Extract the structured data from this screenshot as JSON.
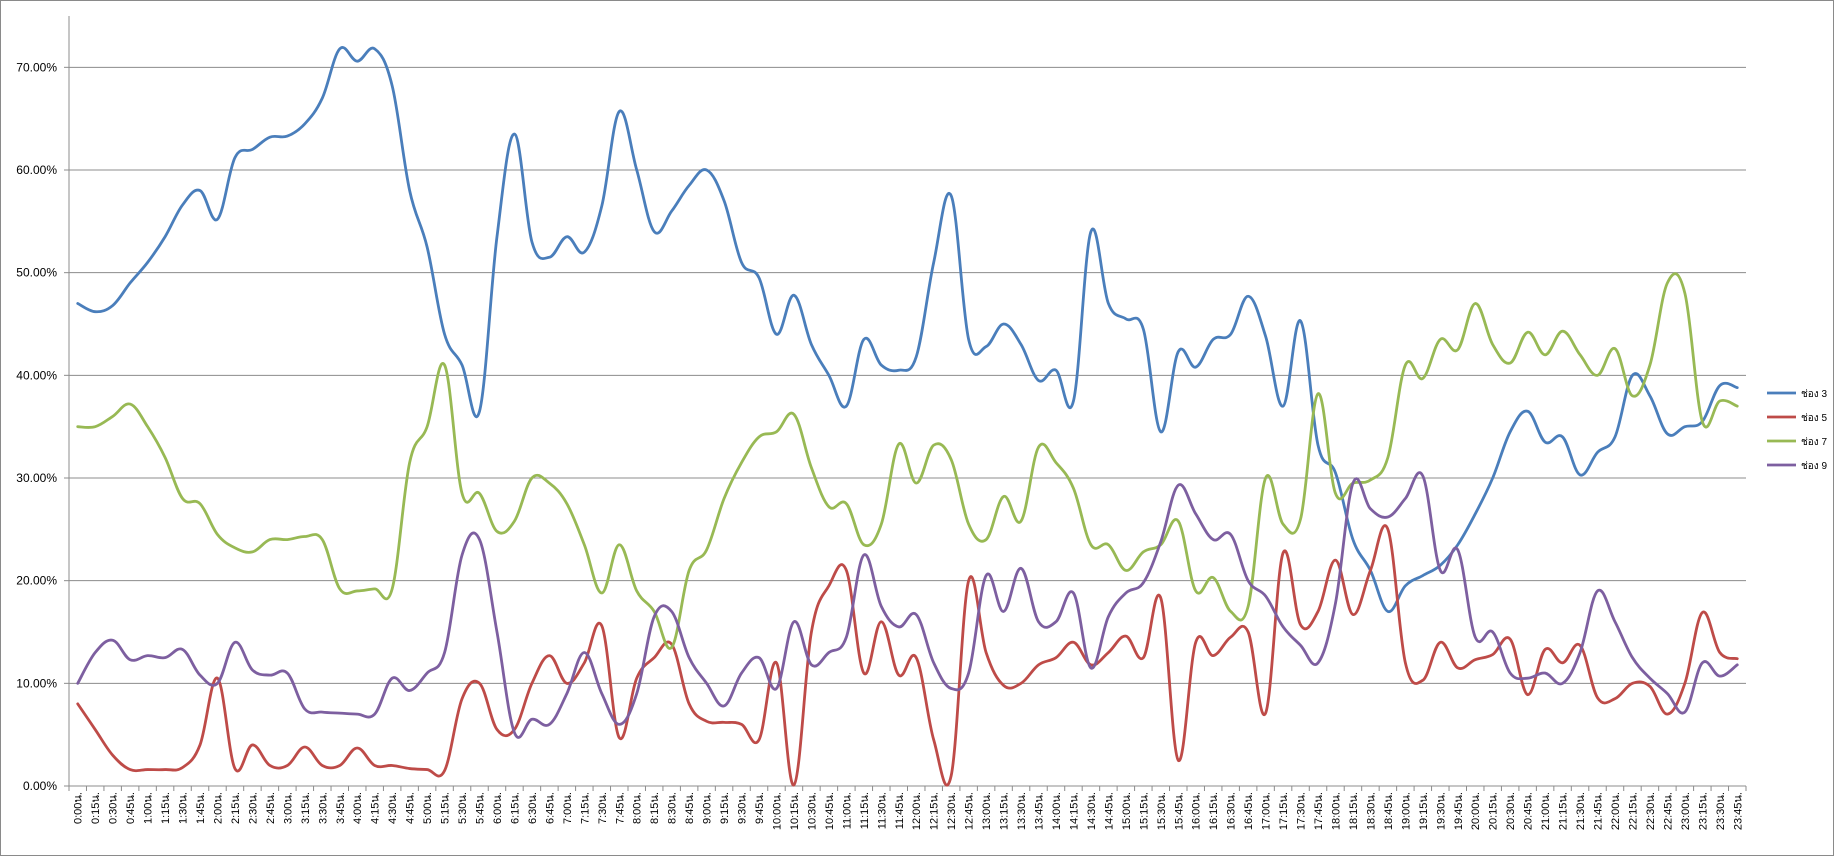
{
  "chart_data": {
    "type": "line",
    "title": "",
    "xlabel": "",
    "ylabel": "",
    "ylim": [
      0,
      0.75
    ],
    "yticks": [
      "0.00%",
      "10.00%",
      "20.00%",
      "30.00%",
      "40.00%",
      "50.00%",
      "60.00%",
      "70.00%"
    ],
    "grid": true,
    "legend_position": "right",
    "categories": [
      "0:00น.",
      "0:15น.",
      "0:30น.",
      "0:45น.",
      "1:00น.",
      "1:15น.",
      "1:30น.",
      "1:45น.",
      "2:00น.",
      "2:15น.",
      "2:30น.",
      "2:45น.",
      "3:00น.",
      "3:15น.",
      "3:30น.",
      "3:45น.",
      "4:00น.",
      "4:15น.",
      "4:30น.",
      "4:45น.",
      "5:00น.",
      "5:15น.",
      "5:30น.",
      "5:45น.",
      "6:00น.",
      "6:15น.",
      "6:30น.",
      "6:45น.",
      "7:00น.",
      "7:15น.",
      "7:30น.",
      "7:45น.",
      "8:00น.",
      "8:15น.",
      "8:30น.",
      "8:45น.",
      "9:00น.",
      "9:15น.",
      "9:30น.",
      "9:45น.",
      "10:00น.",
      "10:15น.",
      "10:30น.",
      "10:45น.",
      "11:00น.",
      "11:15น.",
      "11:30น.",
      "11:45น.",
      "12:00น.",
      "12:15น.",
      "12:30น.",
      "12:45น.",
      "13:00น.",
      "13:15น.",
      "13:30น.",
      "13:45น.",
      "14:00น.",
      "14:15น.",
      "14:30น.",
      "14:45น.",
      "15:00น.",
      "15:15น.",
      "15:30น.",
      "15:45น.",
      "16:00น.",
      "16:15น.",
      "16:30น.",
      "16:45น.",
      "17:00น.",
      "17:15น.",
      "17:30น.",
      "17:45น.",
      "18:00น.",
      "18:15น.",
      "18:30น.",
      "18:45น.",
      "19:00น.",
      "19:15น.",
      "19:30น.",
      "19:45น.",
      "20:00น.",
      "20:15น.",
      "20:30น.",
      "20:45น.",
      "21:00น.",
      "21:15น.",
      "21:30น.",
      "21:45น.",
      "22:00น.",
      "22:15น.",
      "22:30น.",
      "22:45น.",
      "23:00น.",
      "23:15น.",
      "23:30น.",
      "23:45น."
    ],
    "series": [
      {
        "name": "ช่อง 3",
        "color": "#4a7ebb",
        "values": [
          0.47,
          0.462,
          0.468,
          0.49,
          0.51,
          0.535,
          0.566,
          0.58,
          0.552,
          0.612,
          0.62,
          0.632,
          0.633,
          0.645,
          0.67,
          0.718,
          0.706,
          0.718,
          0.682,
          0.58,
          0.525,
          0.44,
          0.41,
          0.365,
          0.535,
          0.635,
          0.53,
          0.515,
          0.535,
          0.52,
          0.565,
          0.657,
          0.6,
          0.54,
          0.56,
          0.585,
          0.6,
          0.57,
          0.51,
          0.495,
          0.44,
          0.478,
          0.43,
          0.4,
          0.37,
          0.435,
          0.41,
          0.405,
          0.418,
          0.51,
          0.575,
          0.435,
          0.428,
          0.45,
          0.43,
          0.395,
          0.405,
          0.375,
          0.54,
          0.47,
          0.455,
          0.445,
          0.345,
          0.423,
          0.408,
          0.435,
          0.44,
          0.477,
          0.438,
          0.37,
          0.453,
          0.332,
          0.305,
          0.24,
          0.21,
          0.17,
          0.195,
          0.205,
          0.215,
          0.235,
          0.265,
          0.3,
          0.345,
          0.365,
          0.335,
          0.34,
          0.303,
          0.325,
          0.34,
          0.4,
          0.38,
          0.343,
          0.35,
          0.355,
          0.39,
          0.388
        ]
      },
      {
        "name": "ช่อง 5",
        "color": "#be4b48",
        "values": [
          0.08,
          0.055,
          0.03,
          0.016,
          0.016,
          0.016,
          0.018,
          0.04,
          0.105,
          0.017,
          0.04,
          0.02,
          0.02,
          0.038,
          0.02,
          0.02,
          0.037,
          0.02,
          0.02,
          0.017,
          0.016,
          0.015,
          0.085,
          0.1,
          0.055,
          0.055,
          0.1,
          0.127,
          0.1,
          0.12,
          0.156,
          0.047,
          0.105,
          0.125,
          0.138,
          0.08,
          0.063,
          0.062,
          0.06,
          0.045,
          0.12,
          0.001,
          0.15,
          0.195,
          0.21,
          0.11,
          0.16,
          0.108,
          0.125,
          0.045,
          0.01,
          0.2,
          0.13,
          0.098,
          0.1,
          0.118,
          0.125,
          0.14,
          0.118,
          0.13,
          0.146,
          0.125,
          0.183,
          0.025,
          0.14,
          0.127,
          0.145,
          0.15,
          0.071,
          0.227,
          0.157,
          0.17,
          0.22,
          0.167,
          0.21,
          0.25,
          0.12,
          0.103,
          0.14,
          0.115,
          0.123,
          0.128,
          0.143,
          0.089,
          0.133,
          0.12,
          0.137,
          0.086,
          0.085,
          0.1,
          0.097,
          0.07,
          0.1,
          0.169,
          0.13,
          0.124
        ]
      },
      {
        "name": "ช่อง 7",
        "color": "#98b954",
        "values": [
          0.35,
          0.35,
          0.36,
          0.372,
          0.35,
          0.32,
          0.28,
          0.275,
          0.245,
          0.232,
          0.228,
          0.24,
          0.24,
          0.243,
          0.24,
          0.192,
          0.19,
          0.192,
          0.192,
          0.315,
          0.35,
          0.41,
          0.285,
          0.285,
          0.248,
          0.258,
          0.3,
          0.295,
          0.275,
          0.235,
          0.188,
          0.235,
          0.19,
          0.17,
          0.135,
          0.21,
          0.23,
          0.28,
          0.315,
          0.34,
          0.345,
          0.362,
          0.31,
          0.272,
          0.275,
          0.235,
          0.255,
          0.333,
          0.295,
          0.332,
          0.318,
          0.255,
          0.24,
          0.282,
          0.258,
          0.33,
          0.315,
          0.29,
          0.235,
          0.235,
          0.21,
          0.228,
          0.235,
          0.258,
          0.19,
          0.203,
          0.17,
          0.175,
          0.3,
          0.255,
          0.26,
          0.382,
          0.285,
          0.295,
          0.298,
          0.32,
          0.41,
          0.397,
          0.435,
          0.425,
          0.47,
          0.43,
          0.412,
          0.442,
          0.42,
          0.443,
          0.42,
          0.4,
          0.426,
          0.38,
          0.41,
          0.49,
          0.48,
          0.355,
          0.375,
          0.37
        ]
      },
      {
        "name": "ช่อง 9",
        "color": "#7d5fa0",
        "values": [
          0.1,
          0.13,
          0.142,
          0.123,
          0.127,
          0.125,
          0.133,
          0.108,
          0.1,
          0.14,
          0.113,
          0.108,
          0.11,
          0.075,
          0.072,
          0.071,
          0.07,
          0.07,
          0.105,
          0.093,
          0.11,
          0.13,
          0.225,
          0.24,
          0.15,
          0.052,
          0.065,
          0.06,
          0.09,
          0.13,
          0.09,
          0.06,
          0.09,
          0.165,
          0.17,
          0.125,
          0.1,
          0.078,
          0.11,
          0.125,
          0.095,
          0.16,
          0.118,
          0.13,
          0.145,
          0.225,
          0.175,
          0.155,
          0.167,
          0.12,
          0.095,
          0.11,
          0.205,
          0.17,
          0.212,
          0.16,
          0.16,
          0.188,
          0.115,
          0.165,
          0.188,
          0.198,
          0.238,
          0.293,
          0.265,
          0.24,
          0.245,
          0.2,
          0.185,
          0.155,
          0.137,
          0.12,
          0.178,
          0.295,
          0.27,
          0.262,
          0.28,
          0.302,
          0.21,
          0.23,
          0.145,
          0.15,
          0.11,
          0.105,
          0.11,
          0.1,
          0.13,
          0.19,
          0.16,
          0.125,
          0.105,
          0.09,
          0.072,
          0.12,
          0.107,
          0.118
        ]
      }
    ]
  }
}
